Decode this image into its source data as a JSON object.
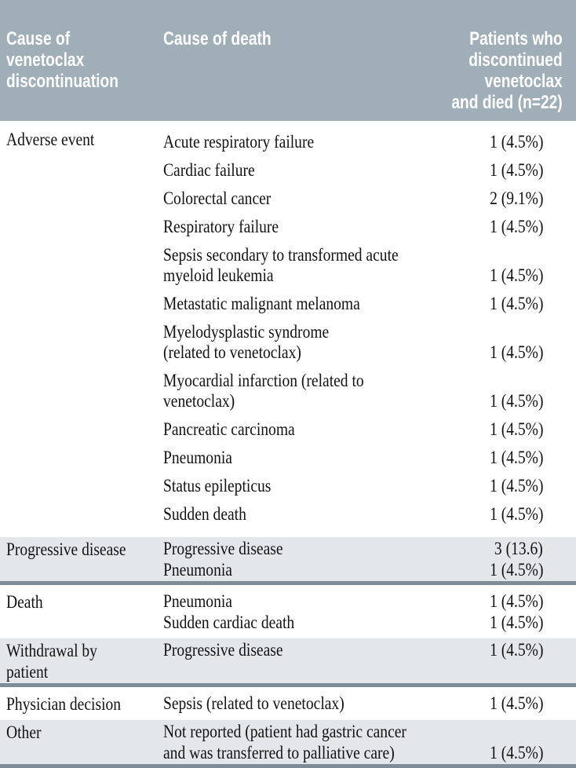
{
  "table": {
    "header": {
      "discontinuation": "Cause of venetoclax\ndiscontinuation",
      "death": "Cause of death",
      "patients": "Patients who\ndiscontinued\nvenetoclax\nand died (n=22)"
    },
    "groups": [
      {
        "label": "Adverse event",
        "rows": [
          {
            "cause": "Acute respiratory failure",
            "count": "1 (4.5%)"
          },
          {
            "cause": "Cardiac failure",
            "count": "1 (4.5%)"
          },
          {
            "cause": "Colorectal cancer",
            "count": "2 (9.1%)"
          },
          {
            "cause": "Respiratory failure",
            "count": "1 (4.5%)"
          },
          {
            "cause": "Sepsis secondary to transformed acute\nmyeloid leukemia",
            "count": "1 (4.5%)"
          },
          {
            "cause": "Metastatic malignant melanoma",
            "count": "1 (4.5%)"
          },
          {
            "cause": "Myelodysplastic syndrome\n(related to venetoclax)",
            "count": "1 (4.5%)"
          },
          {
            "cause": "Myocardial infarction (related to venetoclax)",
            "count": "1 (4.5%)"
          },
          {
            "cause": "Pancreatic carcinoma",
            "count": "1 (4.5%)"
          },
          {
            "cause": "Pneumonia",
            "count": "1 (4.5%)"
          },
          {
            "cause": "Status epilepticus",
            "count": "1 (4.5%)"
          },
          {
            "cause": "Sudden death",
            "count": "1 (4.5%)"
          }
        ]
      },
      {
        "label": "Progressive disease",
        "rows": [
          {
            "cause": "Progressive disease",
            "count": "3 (13.6)"
          },
          {
            "cause": "Pneumonia",
            "count": "1 (4.5%)"
          }
        ]
      },
      {
        "label": "Death",
        "rows": [
          {
            "cause": "Pneumonia",
            "count": "1 (4.5%)"
          },
          {
            "cause": "Sudden cardiac death",
            "count": "1 (4.5%)"
          }
        ]
      },
      {
        "label": "Withdrawal by patient",
        "rows": [
          {
            "cause": "Progressive disease",
            "count": "1 (4.5%)"
          }
        ]
      },
      {
        "label": "Physician decision",
        "rows": [
          {
            "cause": "Sepsis (related to venetoclax)",
            "count": "1 (4.5%)"
          }
        ]
      },
      {
        "label": "Other",
        "rows": [
          {
            "cause": "Not reported (patient had gastric cancer\nand was transferred to palliative care)",
            "count": "1 (4.5%)"
          }
        ]
      }
    ],
    "colors": {
      "header_bg": "#A0AEB8",
      "band_bg": "#E4E7EA",
      "rule": "#7E8C97"
    }
  }
}
